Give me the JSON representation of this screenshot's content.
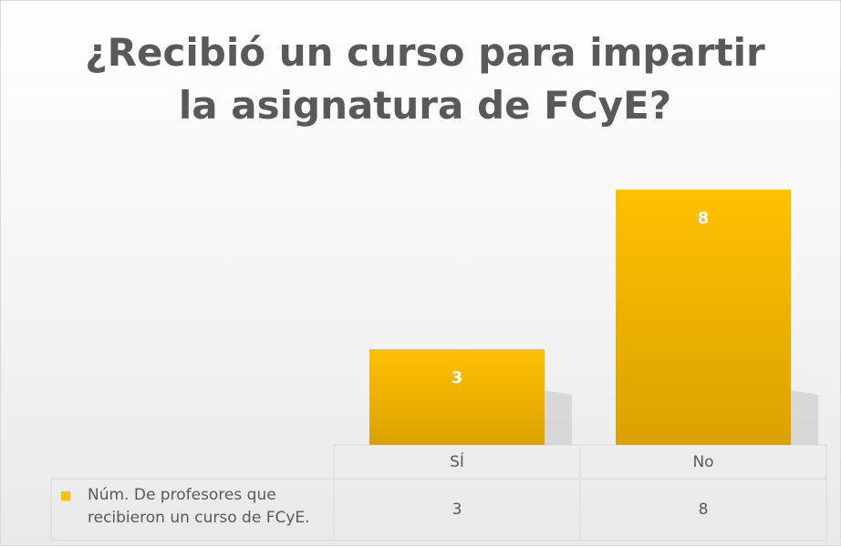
{
  "chart_data": {
    "type": "bar",
    "title": "¿Recibió un curso para impartir la asignatura de FCyE?",
    "categories": [
      "SÍ",
      "No"
    ],
    "series": [
      {
        "name": "Núm. De profesores que recibieron un curso de FCyE.",
        "color": "#ffc000",
        "values": [
          3,
          8
        ]
      }
    ],
    "data_table": true
  }
}
